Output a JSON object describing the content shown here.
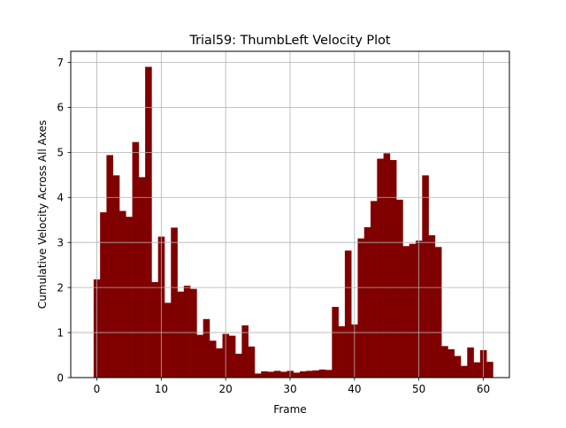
{
  "chart_data": {
    "type": "bar",
    "title": "Trial59: ThumbLeft Velocity Plot",
    "xlabel": "Frame",
    "ylabel": "Cumulative Velocity Across All Axes",
    "x": [
      0,
      1,
      2,
      3,
      4,
      5,
      6,
      7,
      8,
      9,
      10,
      11,
      12,
      13,
      14,
      15,
      16,
      17,
      18,
      19,
      20,
      21,
      22,
      23,
      24,
      25,
      26,
      27,
      28,
      29,
      30,
      31,
      32,
      33,
      34,
      35,
      36,
      37,
      38,
      39,
      40,
      41,
      42,
      43,
      44,
      45,
      46,
      47,
      48,
      49,
      50,
      51,
      52,
      53,
      54,
      55,
      56,
      57,
      58,
      59,
      60,
      61
    ],
    "values": [
      2.18,
      3.67,
      4.94,
      4.49,
      3.7,
      3.57,
      5.23,
      4.45,
      6.9,
      2.12,
      3.13,
      1.66,
      3.33,
      1.91,
      2.04,
      1.97,
      0.95,
      1.3,
      0.82,
      0.65,
      0.97,
      0.93,
      0.53,
      1.16,
      0.69,
      0.09,
      0.14,
      0.13,
      0.15,
      0.13,
      0.15,
      0.11,
      0.14,
      0.15,
      0.16,
      0.18,
      0.17,
      1.57,
      1.14,
      2.82,
      1.18,
      3.09,
      3.34,
      3.92,
      4.86,
      4.98,
      4.83,
      3.95,
      2.92,
      2.97,
      3.04,
      4.49,
      3.16,
      2.9,
      0.7,
      0.63,
      0.48,
      0.26,
      0.67,
      0.34,
      0.61,
      0.35
    ],
    "xlim": [
      -4.05,
      64.05
    ],
    "ylim": [
      0,
      7.245
    ],
    "xticks": [
      0,
      10,
      20,
      30,
      40,
      50,
      60
    ],
    "xtick_labels": [
      "0",
      "10",
      "20",
      "30",
      "40",
      "50",
      "60"
    ],
    "yticks": [
      0,
      1,
      2,
      3,
      4,
      5,
      6,
      7
    ],
    "ytick_labels": [
      "0",
      "1",
      "2",
      "3",
      "4",
      "5",
      "6",
      "7"
    ],
    "grid": true,
    "bar_color": "#800000",
    "grid_color": "#b0b0b0"
  }
}
